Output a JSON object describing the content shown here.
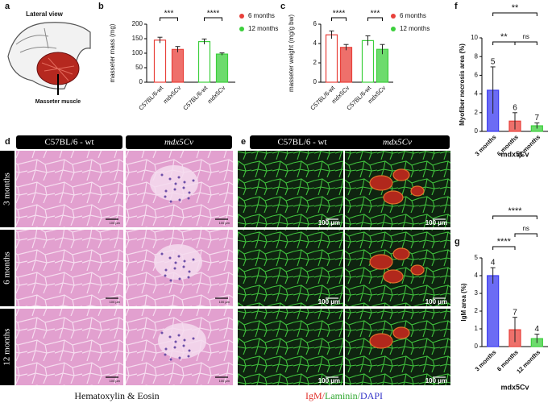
{
  "labels": [
    "a",
    "b",
    "c",
    "d",
    "e",
    "f",
    "g"
  ],
  "illustration": {
    "title": "Lateral view",
    "label": "Masseter muscle"
  },
  "histology": {
    "columns": [
      "C57BL/6 - wt",
      "mdx5Cv"
    ],
    "rows": [
      "3 months",
      "6 months",
      "12 months"
    ],
    "scale_bar": "100 µm",
    "caption_d": "Hematoxylin & Eosin",
    "caption_e": [
      {
        "text": "IgM/",
        "color": "#e0302a"
      },
      {
        "text": "Laminin/",
        "color": "#2fa82f"
      },
      {
        "text": "DAPI",
        "color": "#3434c8"
      }
    ]
  },
  "chart_data": [
    {
      "type": "bar",
      "ylabel": "masseter mass (mg)",
      "categories": [
        "C57BL/6-wt",
        "mdx5Cv"
      ],
      "series": [
        {
          "name": "6 months",
          "color": "#e8403a",
          "values": [
            145,
            113
          ],
          "errors": [
            10,
            10
          ]
        },
        {
          "name": "12 months",
          "color": "#3ccf3c",
          "values": [
            140,
            97
          ],
          "errors": [
            9,
            4
          ]
        }
      ],
      "ylim": [
        0,
        200
      ],
      "yticks": [
        0,
        50,
        100,
        150,
        200
      ],
      "annotations": [
        "***",
        "****"
      ],
      "legend": "right"
    },
    {
      "type": "bar",
      "ylabel": "masseter weight (mg/g bw)",
      "categories": [
        "C57BL/6-wt",
        "mdx5Cv"
      ],
      "series": [
        {
          "name": "6 months",
          "color": "#e8403a",
          "values": [
            4.9,
            3.6
          ],
          "errors": [
            0.4,
            0.3
          ]
        },
        {
          "name": "12 months",
          "color": "#3ccf3c",
          "values": [
            4.3,
            3.4
          ],
          "errors": [
            0.5,
            0.5
          ]
        }
      ],
      "ylim": [
        0,
        6
      ],
      "yticks": [
        0,
        2,
        4,
        6
      ],
      "annotations": [
        "****",
        "***"
      ],
      "legend": "right"
    },
    {
      "type": "bar",
      "ylabel": "Myofiber necrosis area (%)",
      "xlabel": "mdx5Cv",
      "categories": [
        "3 months",
        "6 months",
        "12 months"
      ],
      "values": [
        4.4,
        1.1,
        0.6
      ],
      "errors": [
        2.5,
        0.9,
        0.3
      ],
      "colors": [
        "#3b3bf0",
        "#e8403a",
        "#3ccf3c"
      ],
      "n": [
        5,
        6,
        7
      ],
      "ylim": [
        0,
        10
      ],
      "yticks": [
        0,
        2,
        4,
        6,
        8,
        10
      ],
      "annotations": [
        "**",
        "**",
        "ns"
      ]
    },
    {
      "type": "bar",
      "ylabel": "IgM area (%)",
      "xlabel": "mdx5Cv",
      "categories": [
        "3 months",
        "6 months",
        "12 months"
      ],
      "values": [
        4.0,
        0.95,
        0.45
      ],
      "errors": [
        0.45,
        0.7,
        0.25
      ],
      "colors": [
        "#3b3bf0",
        "#e8403a",
        "#3ccf3c"
      ],
      "n": [
        4,
        7,
        4
      ],
      "ylim": [
        0,
        5
      ],
      "yticks": [
        0,
        1,
        2,
        3,
        4,
        5
      ],
      "annotations": [
        "****",
        "****",
        "ns"
      ]
    }
  ]
}
